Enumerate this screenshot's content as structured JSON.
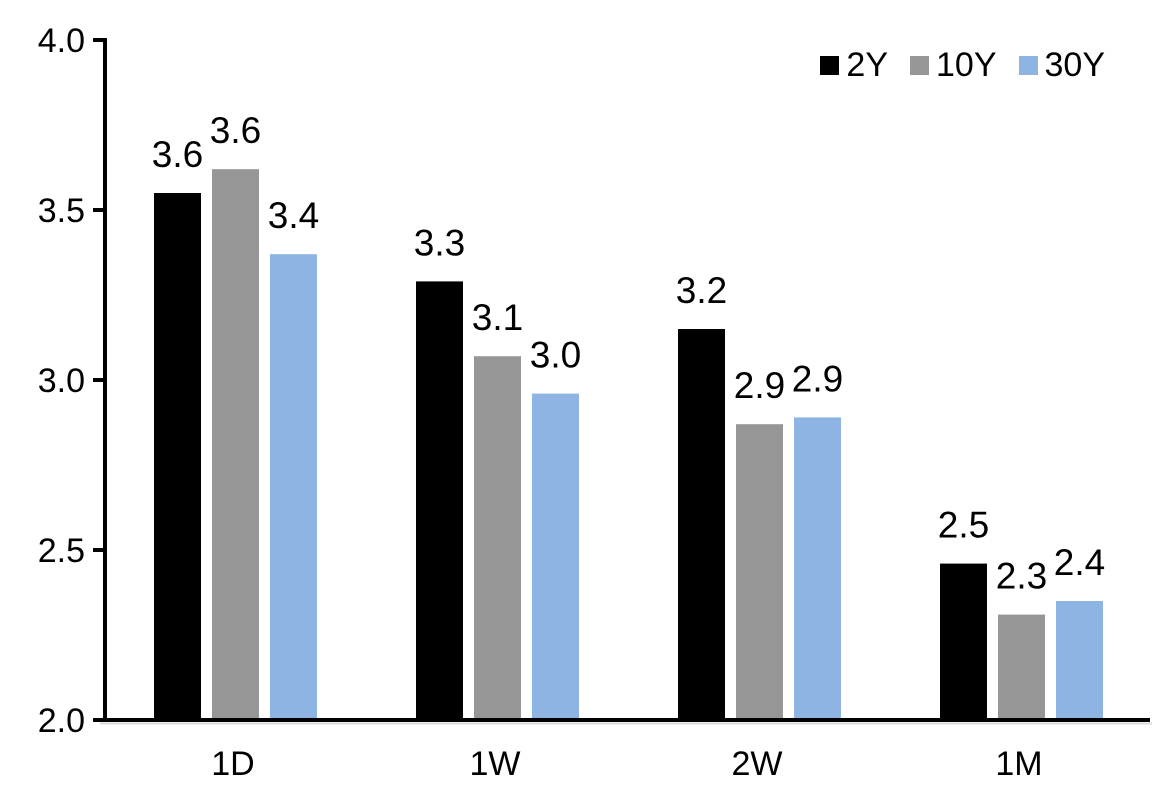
{
  "chart_data": {
    "type": "bar",
    "title": "",
    "xlabel": "",
    "ylabel": "",
    "categories": [
      "1D",
      "1W",
      "2W",
      "1M"
    ],
    "series": [
      {
        "name": "2Y",
        "color": "#000000",
        "values": [
          3.55,
          3.29,
          3.15,
          2.46
        ],
        "labels": [
          "3.6",
          "3.3",
          "3.2",
          "2.5"
        ]
      },
      {
        "name": "10Y",
        "color": "#969696",
        "values": [
          3.62,
          3.07,
          2.87,
          2.31
        ],
        "labels": [
          "3.6",
          "3.1",
          "2.9",
          "2.3"
        ]
      },
      {
        "name": "30Y",
        "color": "#8DB4E2",
        "values": [
          3.37,
          2.96,
          2.89,
          2.35
        ],
        "labels": [
          "3.4",
          "3.0",
          "2.9",
          "2.4"
        ]
      }
    ],
    "ylim": [
      2.0,
      4.0
    ],
    "yticks": [
      4.0,
      3.5,
      3.0,
      2.5,
      2.0
    ],
    "ytick_labels": [
      "4.0",
      "3.5",
      "3.0",
      "2.5",
      "2.0"
    ],
    "grid": false,
    "legend_position": "top-right"
  },
  "colors": {
    "axis": "#000000",
    "axis_shadow": "#D9D9D9",
    "background": "#FFFFFF",
    "text": "#000000"
  }
}
